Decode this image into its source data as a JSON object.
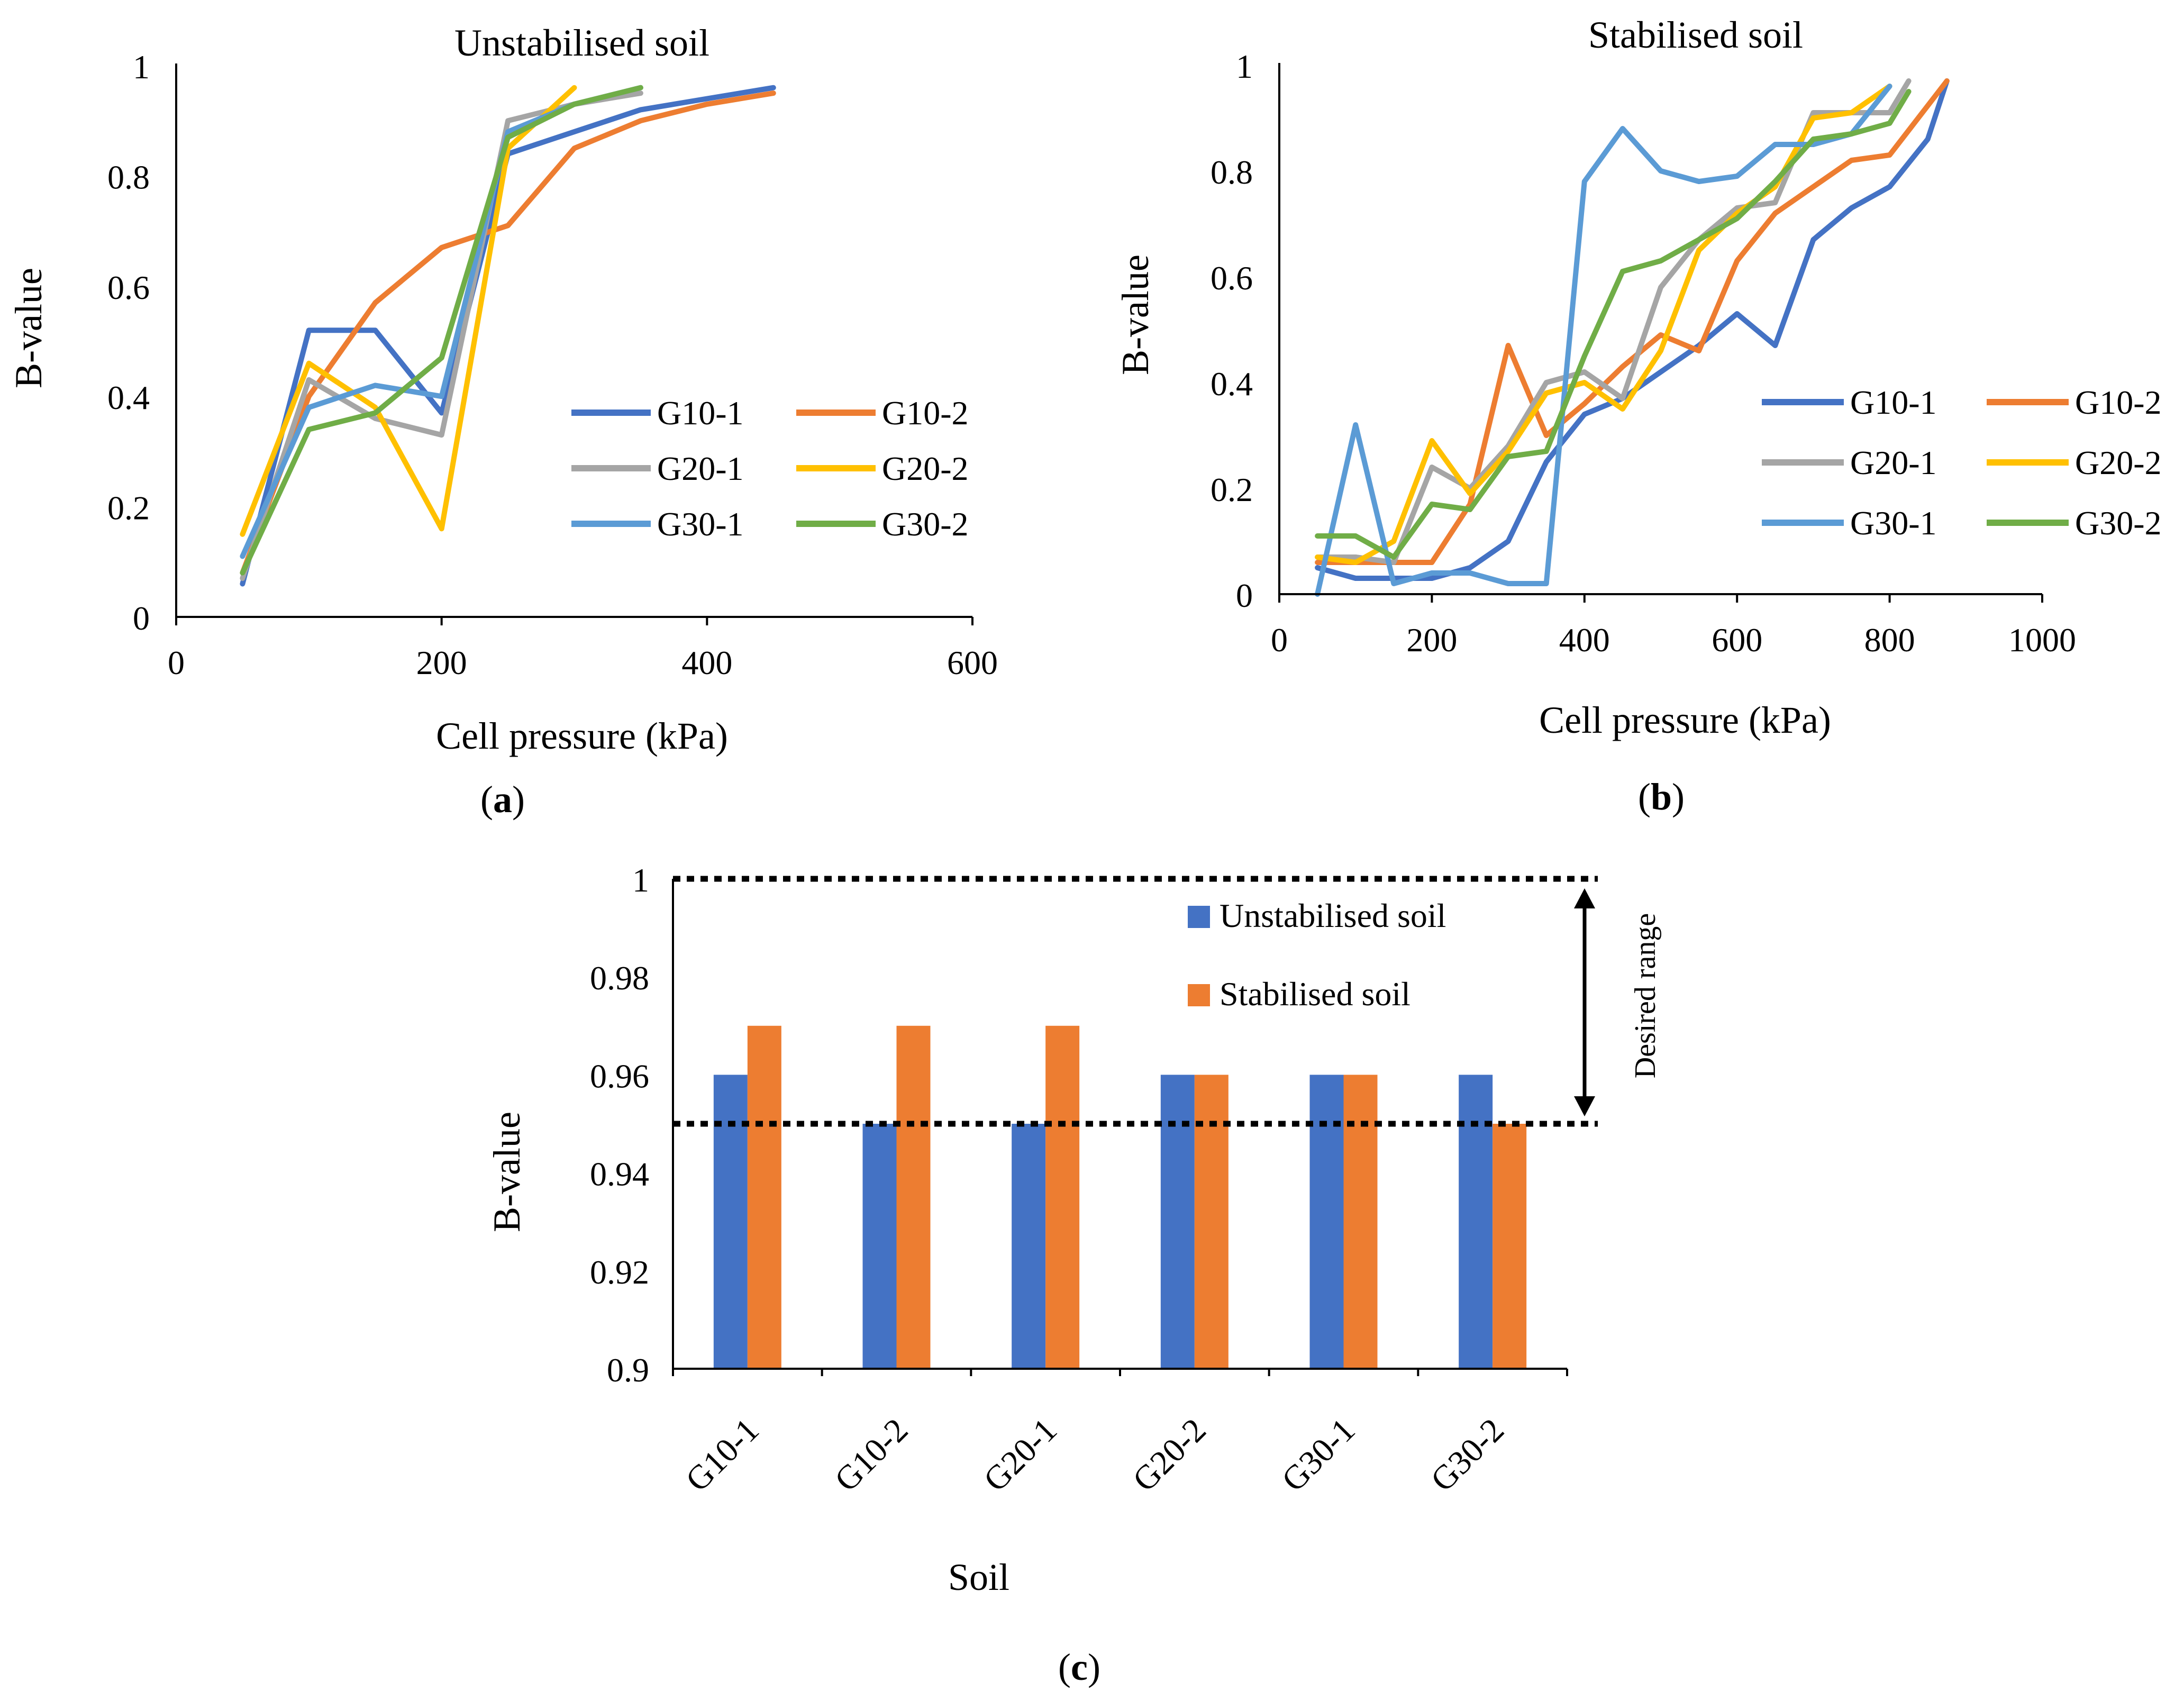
{
  "colors": {
    "G10-1": "#4472C4",
    "G10-2": "#ED7D31",
    "G20-1": "#A5A5A5",
    "G20-2": "#FFC000",
    "G30-1": "#5B9BD5",
    "G30-2": "#70AD47",
    "axis": "#000000"
  },
  "chart_data": [
    {
      "id": "a",
      "type": "line",
      "panel_label": "(a)",
      "panel_letter": "a",
      "title": "Unstabilised soil",
      "xlabel": "Cell pressure (kPa)",
      "ylabel": "B-value",
      "xlim": [
        0,
        600
      ],
      "ylim": [
        0,
        1
      ],
      "xticks": [
        0,
        200,
        400,
        600
      ],
      "yticks": [
        0,
        0.2,
        0.4,
        0.6,
        0.8,
        1
      ],
      "legend_position": "lower-right",
      "series": [
        {
          "name": "G10-1",
          "x": [
            50,
            100,
            150,
            200,
            250,
            300,
            350,
            400,
            450
          ],
          "y": [
            0.06,
            0.52,
            0.52,
            0.37,
            0.84,
            0.88,
            0.92,
            0.94,
            0.96
          ]
        },
        {
          "name": "G10-2",
          "x": [
            50,
            100,
            150,
            200,
            250,
            300,
            350,
            400,
            450
          ],
          "y": [
            0.08,
            0.4,
            0.57,
            0.67,
            0.71,
            0.85,
            0.9,
            0.93,
            0.95
          ]
        },
        {
          "name": "G20-1",
          "x": [
            50,
            100,
            150,
            200,
            250,
            300,
            350
          ],
          "y": [
            0.07,
            0.43,
            0.36,
            0.33,
            0.9,
            0.93,
            0.95
          ]
        },
        {
          "name": "G20-2",
          "x": [
            50,
            100,
            150,
            200,
            250,
            300
          ],
          "y": [
            0.15,
            0.46,
            0.38,
            0.16,
            0.85,
            0.96
          ]
        },
        {
          "name": "G30-1",
          "x": [
            50,
            100,
            150,
            200,
            250,
            300,
            350
          ],
          "y": [
            0.11,
            0.38,
            0.42,
            0.4,
            0.88,
            0.93,
            0.96
          ]
        },
        {
          "name": "G30-2",
          "x": [
            50,
            100,
            150,
            200,
            250,
            300,
            350
          ],
          "y": [
            0.08,
            0.34,
            0.37,
            0.47,
            0.87,
            0.93,
            0.96
          ]
        }
      ]
    },
    {
      "id": "b",
      "type": "line",
      "panel_label": "(b)",
      "panel_letter": "b",
      "title": "Stabilised soil",
      "xlabel": "Cell pressure (kPa)",
      "ylabel": "B-value",
      "xlim": [
        0,
        1000
      ],
      "ylim": [
        0,
        1
      ],
      "xticks": [
        0,
        200,
        400,
        600,
        800,
        1000
      ],
      "yticks": [
        0,
        0.2,
        0.4,
        0.6,
        0.8,
        1
      ],
      "legend_position": "lower-right",
      "series": [
        {
          "name": "G10-1",
          "x": [
            50,
            100,
            150,
            200,
            250,
            300,
            350,
            400,
            450,
            500,
            550,
            600,
            650,
            700,
            750,
            800,
            850,
            875
          ],
          "y": [
            0.05,
            0.03,
            0.03,
            0.03,
            0.05,
            0.1,
            0.25,
            0.34,
            0.37,
            0.42,
            0.47,
            0.53,
            0.47,
            0.67,
            0.73,
            0.77,
            0.86,
            0.97
          ]
        },
        {
          "name": "G10-2",
          "x": [
            50,
            100,
            150,
            200,
            250,
            300,
            350,
            400,
            450,
            500,
            550,
            600,
            650,
            700,
            750,
            800,
            875
          ],
          "y": [
            0.06,
            0.06,
            0.06,
            0.06,
            0.17,
            0.47,
            0.3,
            0.36,
            0.43,
            0.49,
            0.46,
            0.63,
            0.72,
            0.77,
            0.82,
            0.83,
            0.97
          ]
        },
        {
          "name": "G20-1",
          "x": [
            50,
            100,
            150,
            200,
            250,
            300,
            350,
            400,
            450,
            500,
            550,
            600,
            650,
            700,
            750,
            800,
            825
          ],
          "y": [
            0.07,
            0.07,
            0.06,
            0.24,
            0.2,
            0.28,
            0.4,
            0.42,
            0.37,
            0.58,
            0.67,
            0.73,
            0.74,
            0.91,
            0.91,
            0.91,
            0.97
          ]
        },
        {
          "name": "G20-2",
          "x": [
            50,
            100,
            150,
            200,
            250,
            300,
            350,
            400,
            450,
            500,
            550,
            600,
            650,
            700,
            750,
            800
          ],
          "y": [
            0.07,
            0.06,
            0.1,
            0.29,
            0.19,
            0.27,
            0.38,
            0.4,
            0.35,
            0.46,
            0.65,
            0.72,
            0.77,
            0.9,
            0.91,
            0.96
          ]
        },
        {
          "name": "G30-1",
          "x": [
            50,
            100,
            150,
            200,
            250,
            300,
            350,
            400,
            450,
            500,
            550,
            600,
            650,
            700,
            750,
            800
          ],
          "y": [
            0.0,
            0.32,
            0.02,
            0.04,
            0.04,
            0.02,
            0.02,
            0.78,
            0.88,
            0.8,
            0.78,
            0.79,
            0.85,
            0.85,
            0.87,
            0.96
          ]
        },
        {
          "name": "G30-2",
          "x": [
            50,
            100,
            150,
            200,
            250,
            300,
            350,
            400,
            450,
            500,
            550,
            600,
            650,
            700,
            750,
            800,
            825
          ],
          "y": [
            0.11,
            0.11,
            0.07,
            0.17,
            0.16,
            0.26,
            0.27,
            0.45,
            0.61,
            0.63,
            0.67,
            0.71,
            0.78,
            0.86,
            0.87,
            0.89,
            0.95
          ]
        }
      ]
    },
    {
      "id": "c",
      "type": "bar",
      "panel_label": "(c)",
      "panel_letter": "c",
      "xlabel": "Soil",
      "ylabel": "B-value",
      "categories": [
        "G10-1",
        "G10-2",
        "G20-1",
        "G20-2",
        "G30-1",
        "G30-2"
      ],
      "ylim": [
        0.9,
        1
      ],
      "yticks": [
        0.9,
        0.92,
        0.94,
        0.96,
        0.98,
        1
      ],
      "legend_position": "top-right",
      "series": [
        {
          "name": "Unstabilised soil",
          "color": "#4472C4",
          "values": [
            0.96,
            0.95,
            0.95,
            0.96,
            0.96,
            0.96
          ]
        },
        {
          "name": "Stabilised soil",
          "color": "#ED7D31",
          "values": [
            0.97,
            0.97,
            0.97,
            0.96,
            0.96,
            0.95
          ]
        }
      ],
      "reference_lines": [
        0.95,
        1.0
      ],
      "annotation": "Desired range"
    }
  ]
}
